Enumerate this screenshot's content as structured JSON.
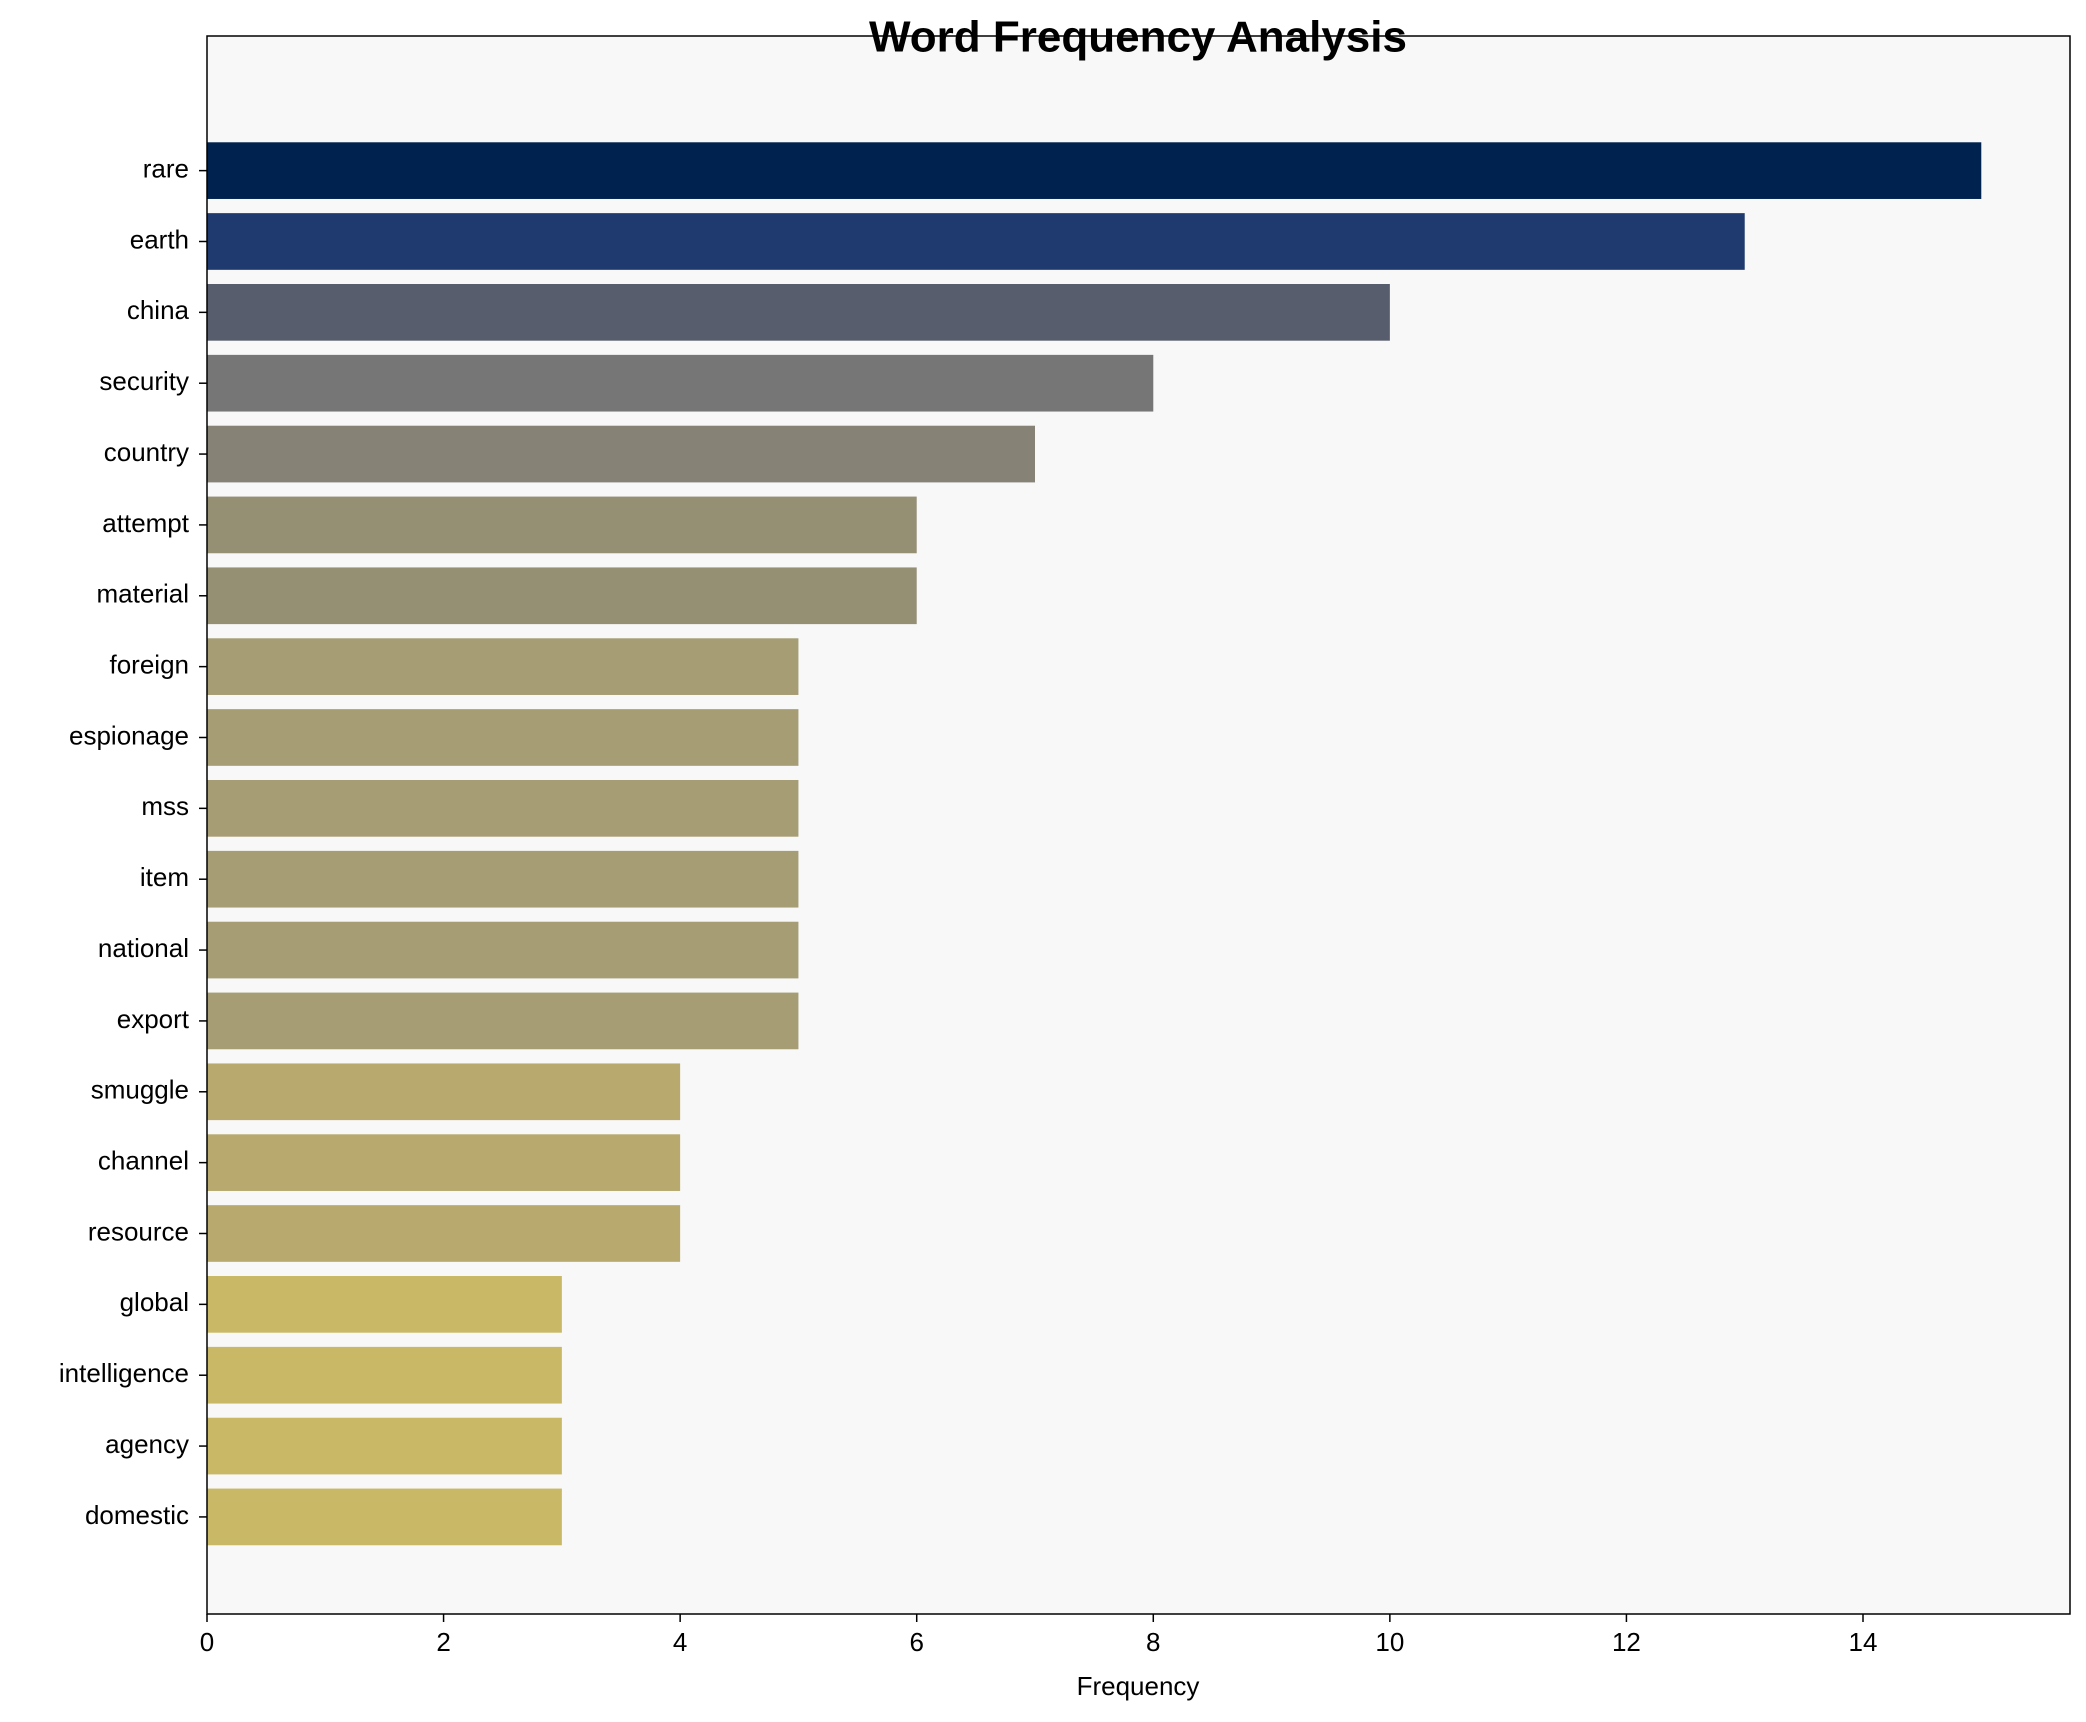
{
  "chart_data": {
    "type": "barh",
    "title": "Word Frequency Analysis",
    "xlabel": "Frequency",
    "categories": [
      "rare",
      "earth",
      "china",
      "security",
      "country",
      "attempt",
      "material",
      "foreign",
      "espionage",
      "mss",
      "item",
      "national",
      "export",
      "smuggle",
      "channel",
      "resource",
      "global",
      "intelligence",
      "agency",
      "domestic"
    ],
    "values": [
      15,
      13,
      10,
      8,
      7,
      6,
      6,
      5,
      5,
      5,
      5,
      5,
      5,
      4,
      4,
      4,
      3,
      3,
      3,
      3
    ],
    "colors": [
      "#00224e",
      "#1f3a6e",
      "#575d6d",
      "#767676",
      "#868276",
      "#958f74",
      "#958f74",
      "#a69d75",
      "#a69d75",
      "#a69d75",
      "#a69d75",
      "#a69d75",
      "#a69d75",
      "#b8aa6f",
      "#b8aa6f",
      "#b8aa6f",
      "#c9b865",
      "#c9b865",
      "#c9b865",
      "#c9b865"
    ],
    "xlim": [
      0,
      15.75
    ],
    "xticks": [
      0,
      2,
      4,
      6,
      8,
      10,
      12,
      14
    ]
  }
}
